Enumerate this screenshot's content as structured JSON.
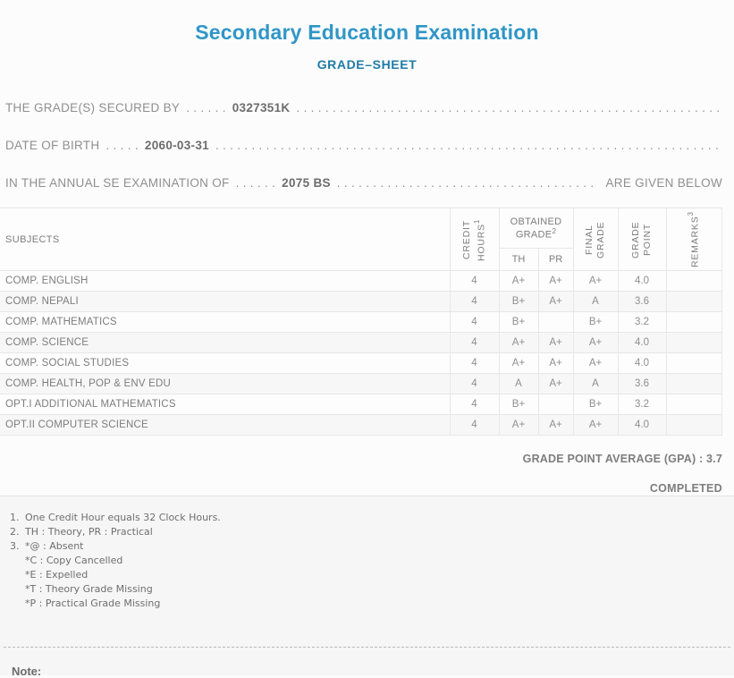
{
  "header": {
    "title": "Secondary Education Examination",
    "subtitle": "GRADE–SHEET"
  },
  "info": {
    "leader": ". . . . . . . . . . . . . . . . . . . . . . . . . . . . . . . . . . . . . . . . . . . . . . . . . . . . . . . . . . . . . . . . . . . . . . . . . . . . . . . . . . . . . . . . . . . . . . . . . . . . . . . . . . . . . . . . . . . . . . . . . . . .",
    "lines": [
      {
        "label": "THE GRADE(S) SECURED BY",
        "dots": ". . . . . .",
        "value": "0327351K",
        "suffix": ""
      },
      {
        "label": "DATE OF BIRTH",
        "dots": ". . . . .",
        "value": "2060-03-31",
        "suffix": ""
      },
      {
        "label": "IN THE ANNUAL SE EXAMINATION OF",
        "dots": ". . . . . .",
        "value": "2075 BS",
        "suffix": "ARE GIVEN BELOW"
      }
    ]
  },
  "table": {
    "headers": {
      "subjects": "SUBJECTS",
      "credit": {
        "l1": "CREDIT",
        "l2": "HOURS",
        "sup": "1"
      },
      "obtained": {
        "l1": "OBTAINED",
        "l2": "GRADE",
        "sup": "2"
      },
      "th": "TH",
      "pr": "PR",
      "final": {
        "l1": "FINAL",
        "l2": "GRADE"
      },
      "gpoint": {
        "l1": "GRADE",
        "l2": "POINT"
      },
      "remarks": {
        "l1": "REMARKS",
        "sup": "3"
      }
    },
    "rows": [
      {
        "subject": "COMP. ENGLISH",
        "credit": "4",
        "th": "A+",
        "pr": "A+",
        "final": "A+",
        "gp": "4.0",
        "remarks": ""
      },
      {
        "subject": "COMP. NEPALI",
        "credit": "4",
        "th": "B+",
        "pr": "A+",
        "final": "A",
        "gp": "3.6",
        "remarks": ""
      },
      {
        "subject": "COMP. MATHEMATICS",
        "credit": "4",
        "th": "B+",
        "pr": "",
        "final": "B+",
        "gp": "3.2",
        "remarks": ""
      },
      {
        "subject": "COMP. SCIENCE",
        "credit": "4",
        "th": "A+",
        "pr": "A+",
        "final": "A+",
        "gp": "4.0",
        "remarks": ""
      },
      {
        "subject": "COMP. SOCIAL STUDIES",
        "credit": "4",
        "th": "A+",
        "pr": "A+",
        "final": "A+",
        "gp": "4.0",
        "remarks": ""
      },
      {
        "subject": "COMP. HEALTH, POP & ENV EDU",
        "credit": "4",
        "th": "A",
        "pr": "A+",
        "final": "A",
        "gp": "3.6",
        "remarks": ""
      },
      {
        "subject": "OPT.I ADDITIONAL MATHEMATICS",
        "credit": "4",
        "th": "B+",
        "pr": "",
        "final": "B+",
        "gp": "3.2",
        "remarks": ""
      },
      {
        "subject": "OPT.II COMPUTER SCIENCE",
        "credit": "4",
        "th": "A+",
        "pr": "A+",
        "final": "A+",
        "gp": "4.0",
        "remarks": ""
      }
    ]
  },
  "summary": {
    "gpa": "GRADE POINT AVERAGE (GPA) : 3.7",
    "status": "COMPLETED"
  },
  "notes": {
    "items": [
      {
        "num": "1.",
        "text": "One Credit Hour equals 32 Clock Hours."
      },
      {
        "num": "2.",
        "text": "TH : Theory, PR : Practical"
      },
      {
        "num": "3.",
        "text": "*@ : Absent"
      },
      {
        "num": "",
        "text": "*C : Copy Cancelled"
      },
      {
        "num": "",
        "text": "*E : Expelled"
      },
      {
        "num": "",
        "text": "*T : Theory Grade Missing"
      },
      {
        "num": "",
        "text": "*P : Practical Grade Missing"
      }
    ]
  },
  "footer": {
    "note_label": "Note:"
  }
}
